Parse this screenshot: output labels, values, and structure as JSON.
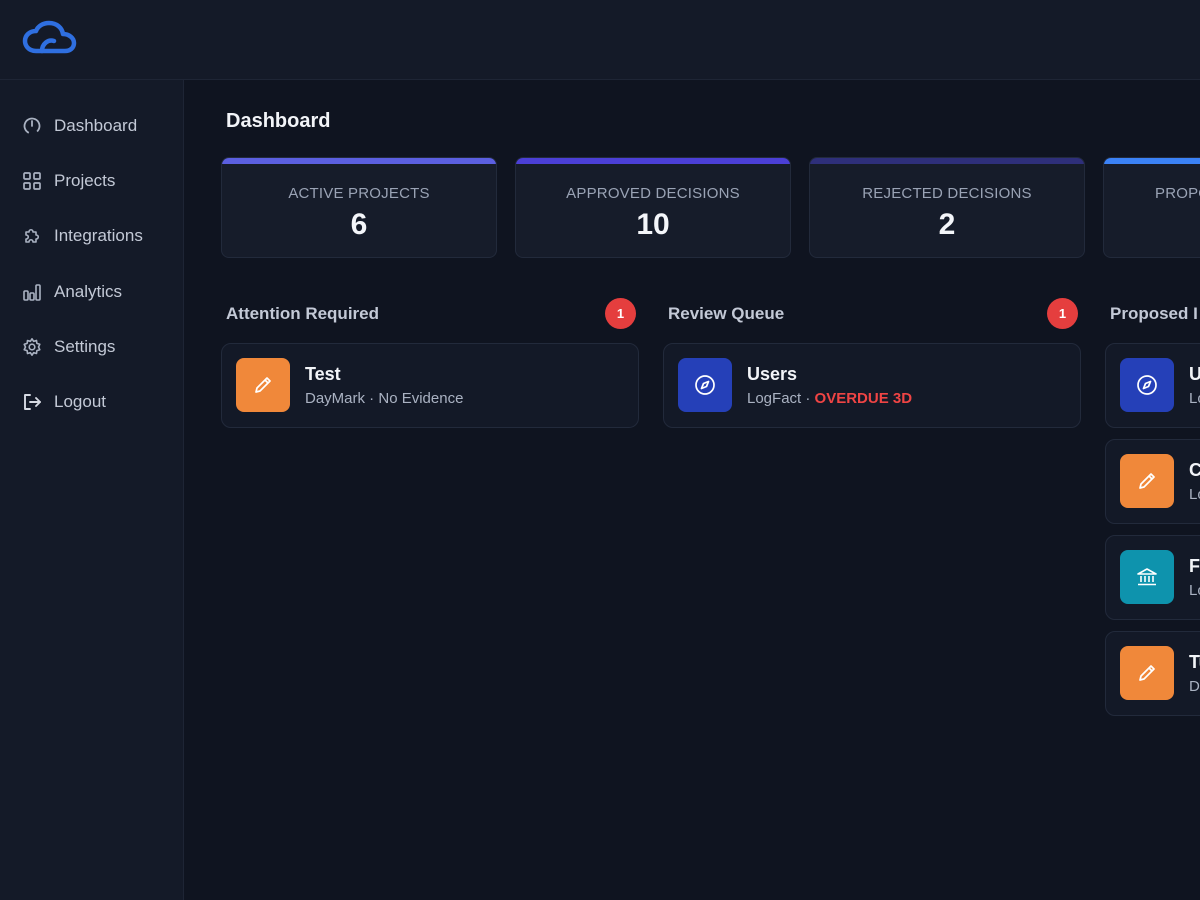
{
  "sidebar": {
    "items": [
      {
        "label": "Dashboard",
        "icon": "gauge-icon"
      },
      {
        "label": "Projects",
        "icon": "grid-icon"
      },
      {
        "label": "Integrations",
        "icon": "puzzle-icon"
      },
      {
        "label": "Analytics",
        "icon": "bar-chart-icon"
      },
      {
        "label": "Settings",
        "icon": "gear-icon"
      },
      {
        "label": "Logout",
        "icon": "logout-icon"
      }
    ]
  },
  "page": {
    "title": "Dashboard"
  },
  "stats": [
    {
      "label": "ACTIVE PROJECTS",
      "value": "6",
      "color": "#5b5fe0"
    },
    {
      "label": "APPROVED DECISIONS",
      "value": "10",
      "color": "#4b3fd6"
    },
    {
      "label": "REJECTED DECISIONS",
      "value": "2",
      "color": "#2e2f7a"
    },
    {
      "label": "PROPO",
      "value": "",
      "color": "#3b82f6"
    }
  ],
  "attention": {
    "title": "Attention Required",
    "count": "1",
    "items": [
      {
        "title": "Test",
        "project": "DayMark",
        "separator": " · ",
        "status": "No Evidence",
        "icon": "pencil-icon",
        "color": "#f0883a"
      }
    ]
  },
  "review": {
    "title": "Review Queue",
    "count": "1",
    "items": [
      {
        "title": "Users",
        "project": "LogFact",
        "separator": " · ",
        "status": "OVERDUE 3D",
        "icon": "compass-icon",
        "color": "#2540b8"
      }
    ]
  },
  "proposed": {
    "title": "Proposed I",
    "items": [
      {
        "title": "U",
        "sub": "Lo",
        "icon": "compass-icon",
        "color": "#2540b8"
      },
      {
        "title": "C",
        "sub": "Lo",
        "icon": "pencil-icon",
        "color": "#f0883a"
      },
      {
        "title": "Fi",
        "sub": "Lo",
        "icon": "bank-icon",
        "color": "#0e93ad"
      },
      {
        "title": "Tu",
        "sub": "D",
        "icon": "pencil-icon",
        "color": "#f0883a"
      }
    ]
  },
  "colors": {
    "accent": "#2f6fe0",
    "danger": "#e53e3e"
  }
}
